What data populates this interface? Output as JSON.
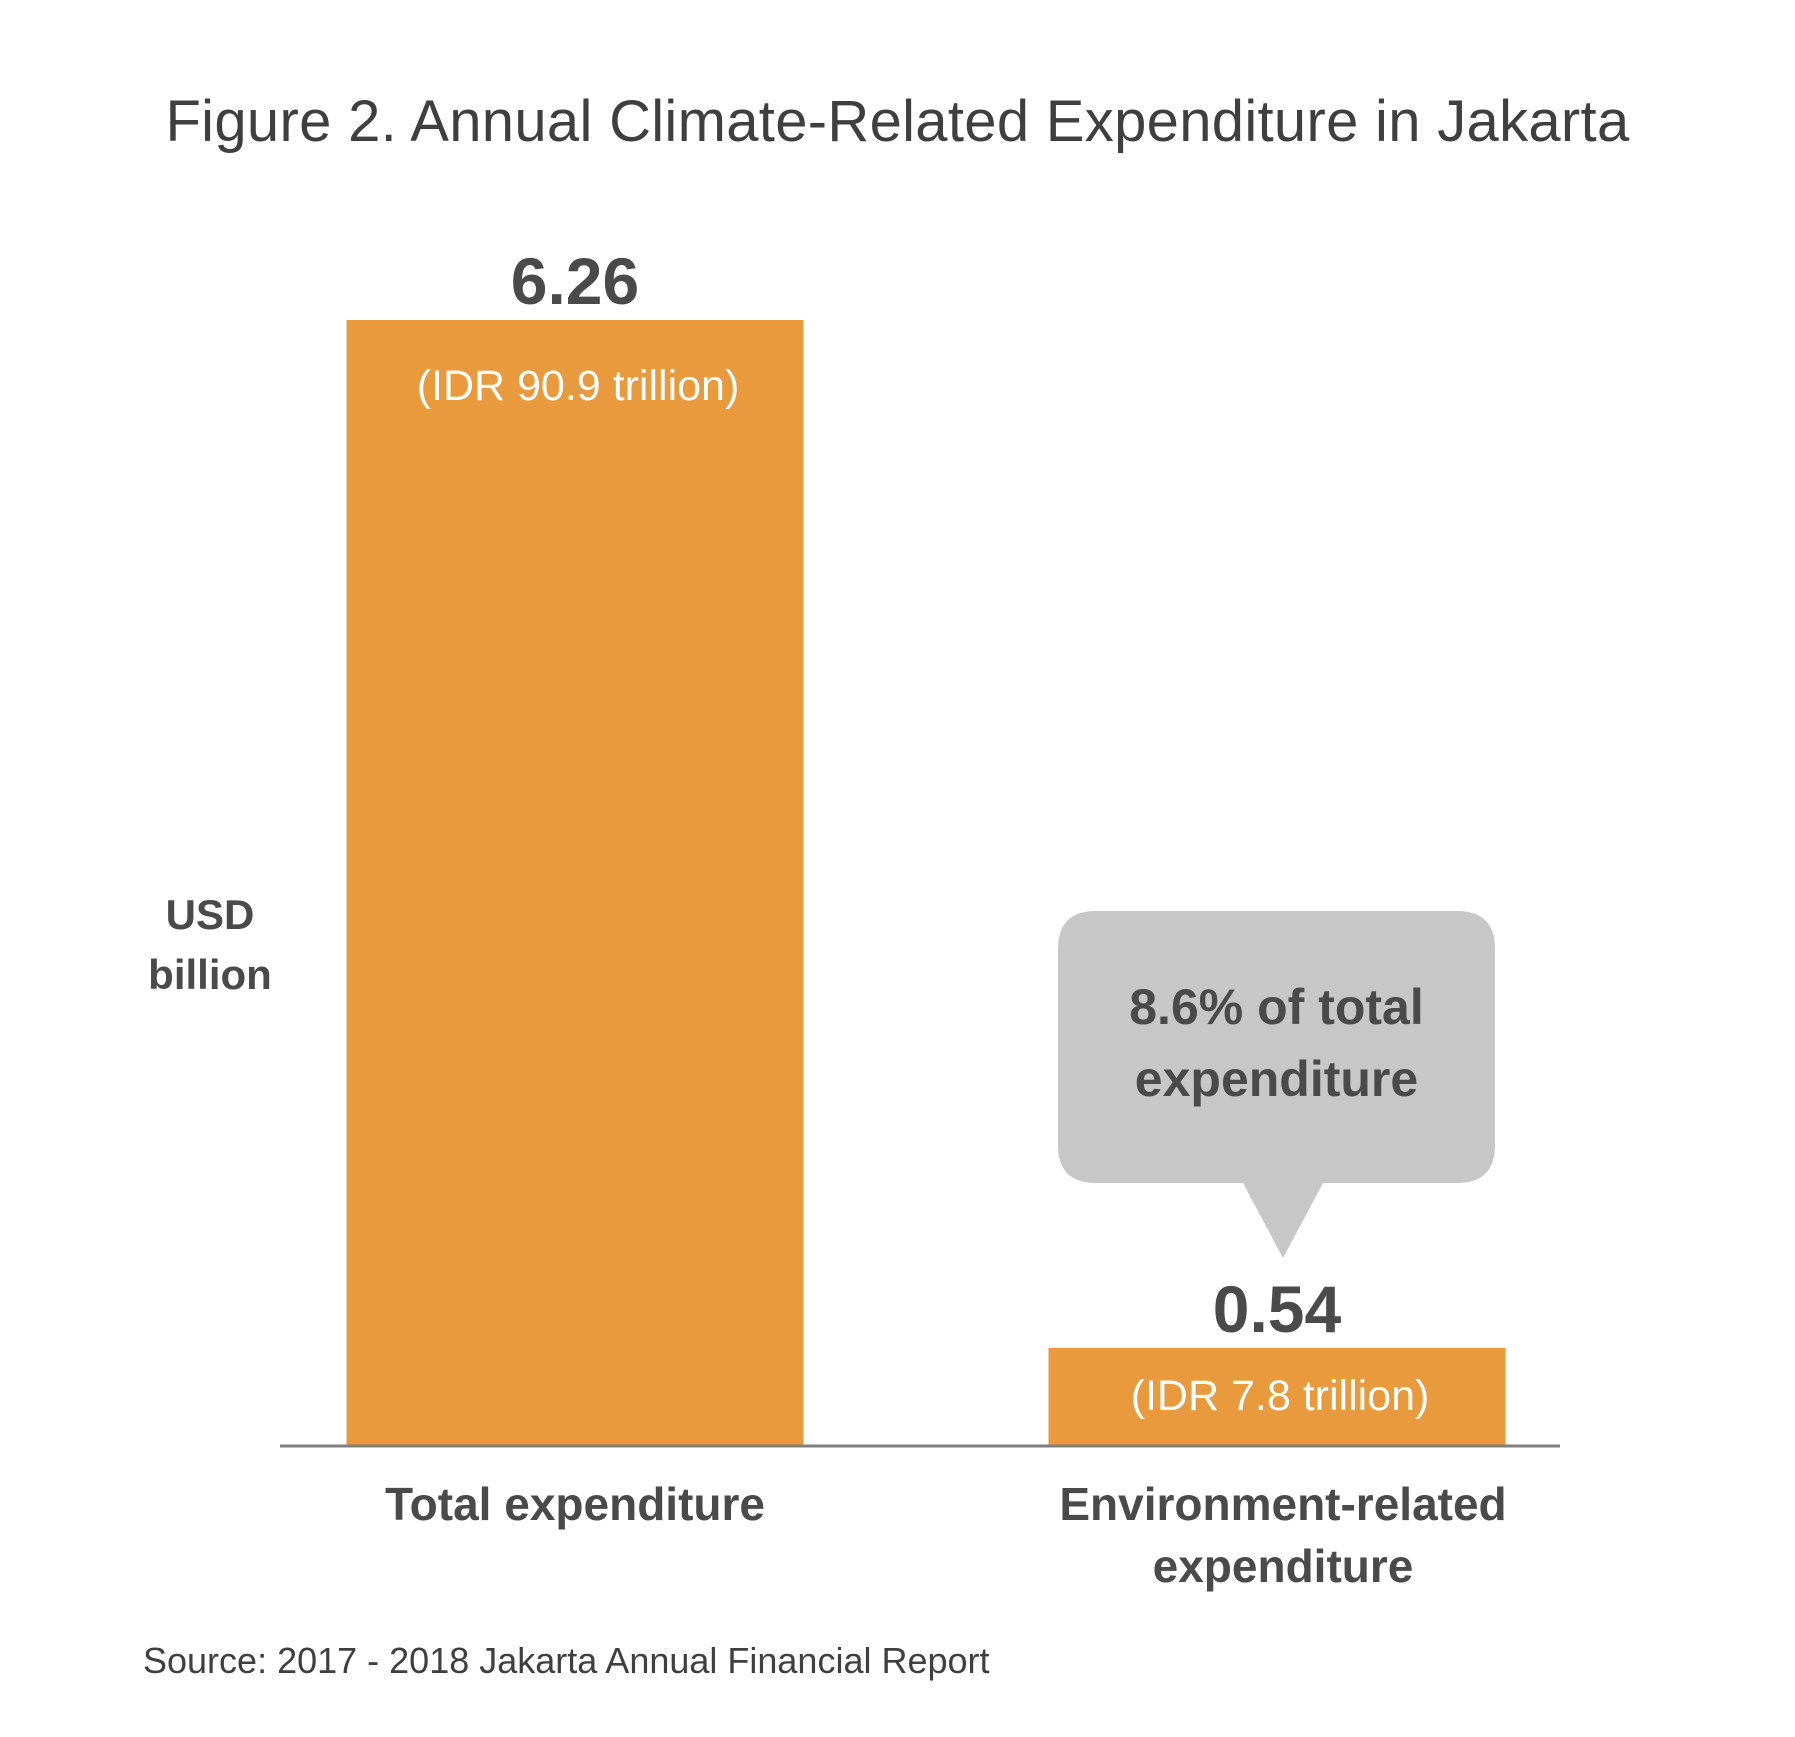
{
  "chart_data": {
    "type": "bar",
    "title": "Figure 2. Annual Climate-Related Expenditure in Jakarta",
    "ylabel_lines": [
      "USD",
      "billion"
    ],
    "categories": [
      [
        "Total expenditure"
      ],
      [
        "Environment-related",
        "expenditure"
      ]
    ],
    "values": [
      6.26,
      0.54
    ],
    "value_labels": [
      "6.26",
      "0.54"
    ],
    "sub_labels": [
      "(IDR 90.9 trillion)",
      "(IDR 7.8 trillion)"
    ],
    "annotation": {
      "bar_index": 1,
      "lines": [
        "8.6% of total",
        "expenditure"
      ]
    },
    "ylim": [
      0,
      6.26
    ],
    "grid": false,
    "legend": "none",
    "colors": {
      "bar": "#e89a3c",
      "callout": "#c7c7c7",
      "text": "#4a4a4a",
      "axis": "#808080"
    }
  },
  "source": "Source: 2017 - 2018 Jakarta Annual Financial Report"
}
